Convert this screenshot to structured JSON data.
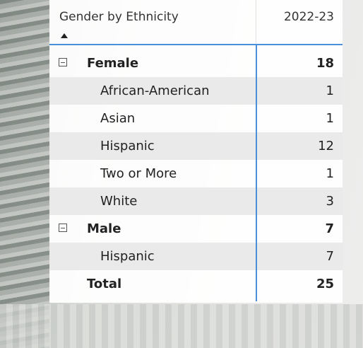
{
  "table": {
    "columns": [
      "Gender by Ethnicity",
      "2022-23"
    ],
    "rows": [
      {
        "kind": "group",
        "label": "Female",
        "value": "18"
      },
      {
        "kind": "item",
        "label": "African-American",
        "value": "1"
      },
      {
        "kind": "item",
        "label": "Asian",
        "value": "1"
      },
      {
        "kind": "item",
        "label": "Hispanic",
        "value": "12"
      },
      {
        "kind": "item",
        "label": "Two or More",
        "value": "1"
      },
      {
        "kind": "item",
        "label": "White",
        "value": "3"
      },
      {
        "kind": "group",
        "label": "Male",
        "value": "7"
      },
      {
        "kind": "item",
        "label": "Hispanic",
        "value": "7"
      },
      {
        "kind": "total",
        "label": "Total",
        "value": "25"
      }
    ]
  }
}
